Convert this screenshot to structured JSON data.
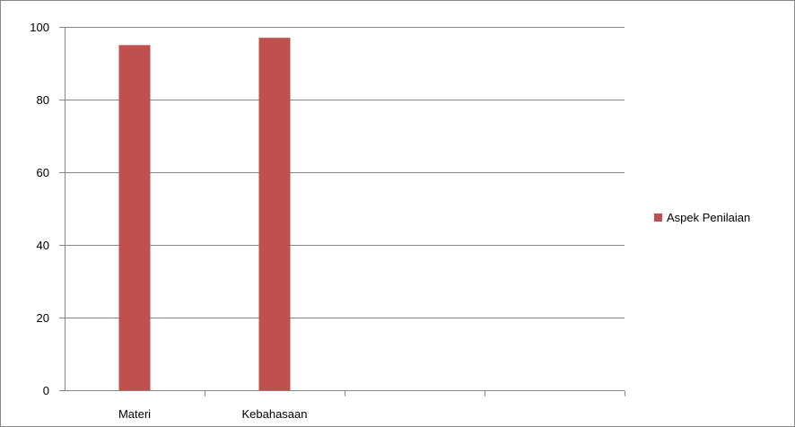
{
  "chart_data": {
    "type": "bar",
    "categories": [
      "Materi",
      "Kebahasaan",
      "",
      ""
    ],
    "series": [
      {
        "name": "Aspek Penilaian",
        "values": [
          95,
          97,
          null,
          null
        ],
        "color": "#c0504d"
      }
    ],
    "ylim": [
      0,
      100
    ],
    "yticks": [
      0,
      20,
      40,
      60,
      80,
      100
    ],
    "ytick_labels": [
      "0",
      "20",
      "40",
      "60",
      "80",
      "100"
    ],
    "grid": true,
    "legend": "right",
    "title": "",
    "xlabel": "",
    "ylabel": ""
  }
}
